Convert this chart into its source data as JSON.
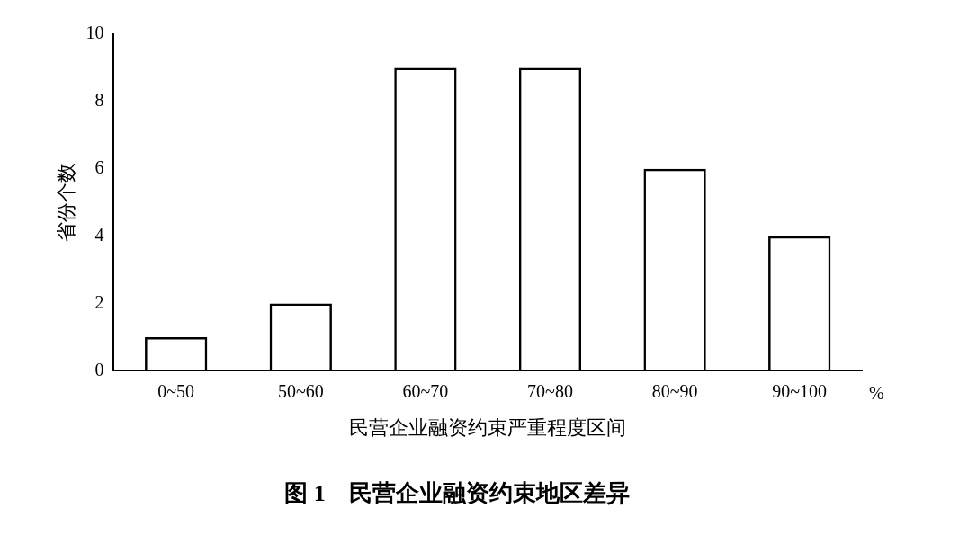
{
  "chart_data": {
    "type": "bar",
    "title": "图 1　民营企业融资约束地区差异",
    "xlabel": "民营企业融资约束严重程度区间",
    "ylabel": "省份个数",
    "categories": [
      "0~50",
      "50~60",
      "60~70",
      "70~80",
      "80~90",
      "90~100"
    ],
    "values": [
      1,
      2,
      9,
      9,
      6,
      4
    ],
    "color": "#000000",
    "ylim": [
      0,
      10
    ],
    "yticks": [
      0,
      2,
      4,
      6,
      8,
      10
    ],
    "grid": false,
    "legend": false,
    "annotations": [
      "%"
    ]
  }
}
